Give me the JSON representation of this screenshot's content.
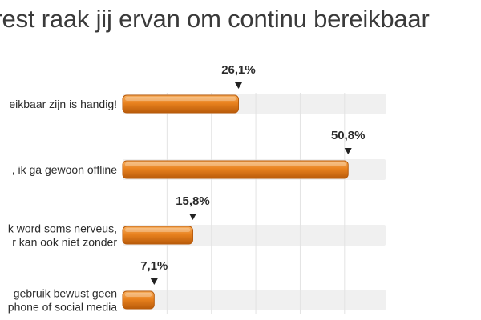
{
  "chart_data": {
    "type": "bar",
    "orientation": "horizontal",
    "title": "trest raak jij ervan om continu bereikbaar",
    "categories": [
      [
        "eikbaar zijn is handig!"
      ],
      [
        ", ik ga gewoon offline"
      ],
      [
        "k word soms nerveus,",
        "r kan ook niet zonder"
      ],
      [
        "gebruik bewust geen",
        "phone of social media"
      ]
    ],
    "values": [
      26.1,
      50.8,
      15.8,
      7.1
    ],
    "value_labels": [
      "26,1%",
      "50,8%",
      "15,8%",
      "7,1%"
    ],
    "xlim": [
      0,
      60
    ],
    "grid": true,
    "legend": "none",
    "colors": {
      "bar": "#e8801c",
      "bar_light": "#f4a452",
      "bar_dark": "#b85a0a",
      "track": "#f0f0f0",
      "grid": "#e3e3e3",
      "text": "#2b2b2b"
    }
  }
}
